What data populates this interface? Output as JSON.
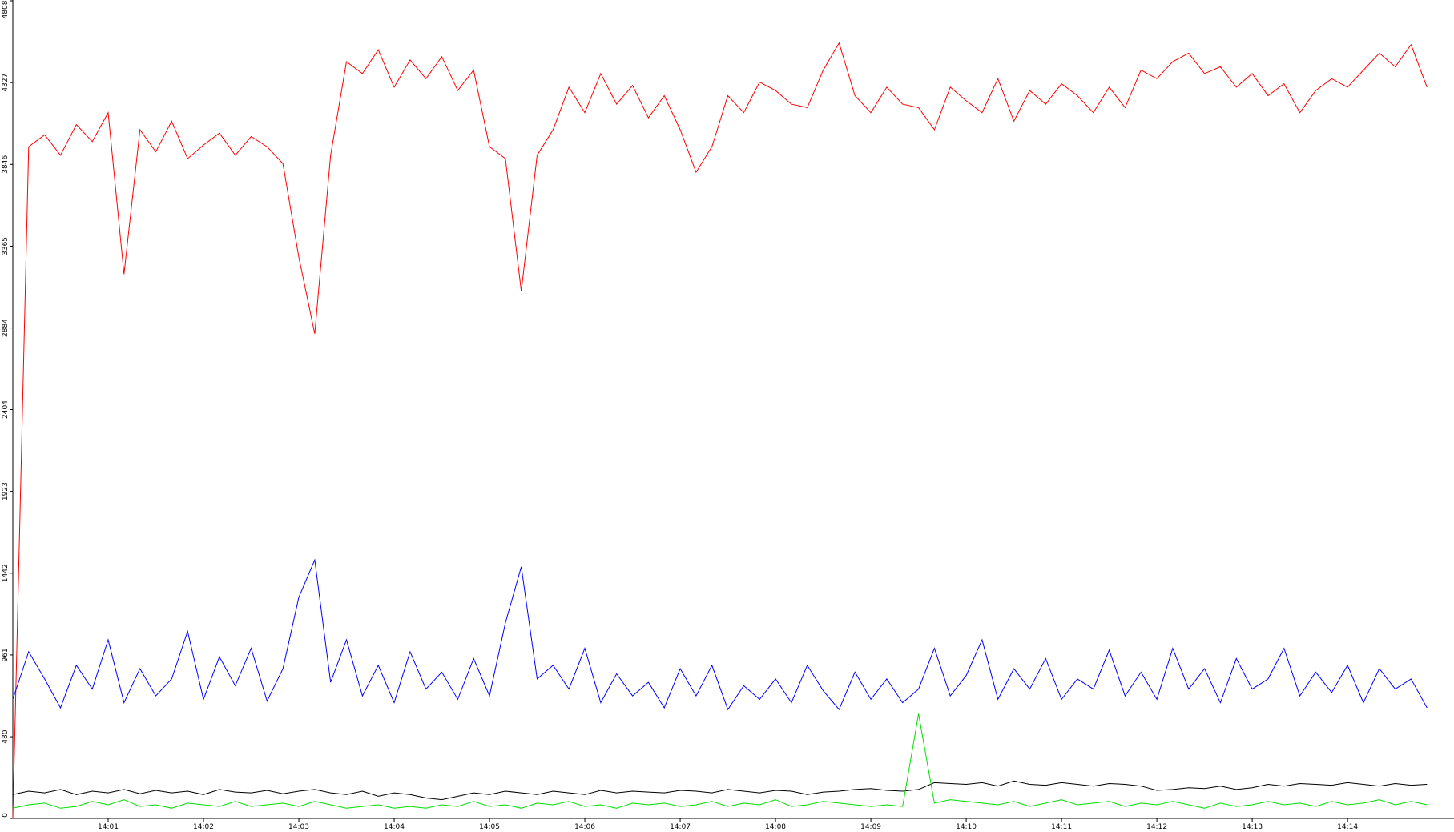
{
  "chart_data": {
    "type": "line",
    "categories": [
      null,
      null,
      null,
      null,
      null,
      null,
      "14:01",
      null,
      null,
      null,
      null,
      null,
      "14:02",
      null,
      null,
      null,
      null,
      null,
      "14:03",
      null,
      null,
      null,
      null,
      null,
      "14:04",
      null,
      null,
      null,
      null,
      null,
      "14:05",
      null,
      null,
      null,
      null,
      null,
      "14:06",
      null,
      null,
      null,
      null,
      null,
      "14:07",
      null,
      null,
      null,
      null,
      null,
      "14:08",
      null,
      null,
      null,
      null,
      null,
      "14:09",
      null,
      null,
      null,
      null,
      null,
      "14:10",
      null,
      null,
      null,
      null,
      null,
      "14:11",
      null,
      null,
      null,
      null,
      null,
      "14:12",
      null,
      null,
      null,
      null,
      null,
      "14:13",
      null,
      null,
      null,
      null,
      null,
      "14:14",
      null,
      null,
      null,
      null,
      null
    ],
    "series": [
      {
        "color": "#ff0000",
        "values": [
          0,
          3950,
          4020,
          3900,
          4080,
          3980,
          4150,
          3200,
          4050,
          3920,
          4100,
          3880,
          3960,
          4030,
          3900,
          4010,
          3950,
          3850,
          3300,
          2850,
          3900,
          4450,
          4380,
          4520,
          4300,
          4460,
          4350,
          4480,
          4280,
          4400,
          3950,
          3880,
          3100,
          3900,
          4050,
          4300,
          4150,
          4380,
          4200,
          4310,
          4120,
          4250,
          4050,
          3800,
          3950,
          4250,
          4150,
          4330,
          4280,
          4200,
          4180,
          4400,
          4560,
          4250,
          4150,
          4300,
          4200,
          4180,
          4050,
          4300,
          4220,
          4150,
          4350,
          4100,
          4280,
          4200,
          4320,
          4250,
          4150,
          4300,
          4180,
          4400,
          4350,
          4450,
          4500,
          4380,
          4420,
          4300,
          4380,
          4250,
          4320,
          4150,
          4280,
          4350,
          4300,
          4400,
          4500,
          4420,
          4550,
          4300
        ]
      },
      {
        "color": "#0000ff",
        "values": [
          700,
          980,
          820,
          650,
          900,
          760,
          1050,
          680,
          880,
          720,
          820,
          1100,
          700,
          950,
          780,
          1000,
          690,
          880,
          1300,
          1520,
          800,
          1050,
          720,
          900,
          680,
          980,
          760,
          860,
          700,
          940,
          720,
          1150,
          1480,
          820,
          900,
          760,
          1000,
          680,
          850,
          720,
          800,
          650,
          880,
          720,
          900,
          640,
          780,
          700,
          820,
          680,
          900,
          750,
          640,
          860,
          700,
          820,
          680,
          760,
          1000,
          720,
          840,
          1050,
          700,
          880,
          760,
          940,
          700,
          820,
          760,
          990,
          720,
          860,
          700,
          1000,
          760,
          880,
          680,
          940,
          760,
          820,
          1000,
          720,
          860,
          740,
          900,
          680,
          880,
          760,
          820,
          650
        ]
      },
      {
        "color": "#000000",
        "values": [
          140,
          160,
          150,
          170,
          140,
          160,
          150,
          170,
          145,
          165,
          150,
          160,
          140,
          170,
          155,
          150,
          165,
          145,
          160,
          170,
          150,
          140,
          160,
          130,
          150,
          140,
          120,
          110,
          130,
          150,
          140,
          160,
          150,
          140,
          160,
          150,
          140,
          165,
          150,
          160,
          155,
          150,
          165,
          160,
          150,
          170,
          160,
          150,
          165,
          160,
          140,
          155,
          160,
          170,
          175,
          165,
          160,
          170,
          210,
          205,
          200,
          210,
          190,
          220,
          200,
          195,
          210,
          200,
          190,
          205,
          200,
          190,
          165,
          170,
          180,
          175,
          190,
          170,
          180,
          200,
          190,
          205,
          200,
          195,
          210,
          200,
          190,
          205,
          195,
          200
        ]
      },
      {
        "color": "#00e000",
        "values": [
          60,
          80,
          90,
          60,
          70,
          100,
          80,
          110,
          70,
          80,
          60,
          90,
          80,
          70,
          100,
          70,
          80,
          90,
          70,
          100,
          80,
          60,
          70,
          80,
          60,
          70,
          60,
          80,
          70,
          100,
          70,
          80,
          60,
          90,
          80,
          100,
          70,
          80,
          60,
          90,
          80,
          90,
          70,
          80,
          100,
          70,
          90,
          80,
          110,
          70,
          80,
          100,
          90,
          80,
          70,
          80,
          70,
          615,
          90,
          110,
          100,
          90,
          80,
          100,
          70,
          90,
          110,
          80,
          90,
          100,
          70,
          90,
          80,
          100,
          80,
          60,
          90,
          70,
          80,
          100,
          80,
          90,
          70,
          100,
          80,
          90,
          110,
          80,
          100,
          80
        ]
      }
    ],
    "ylim": [
      0,
      4808
    ],
    "yticks": [
      0,
      480,
      961,
      1442,
      1923,
      2404,
      2884,
      3365,
      3846,
      4327,
      4808
    ]
  }
}
